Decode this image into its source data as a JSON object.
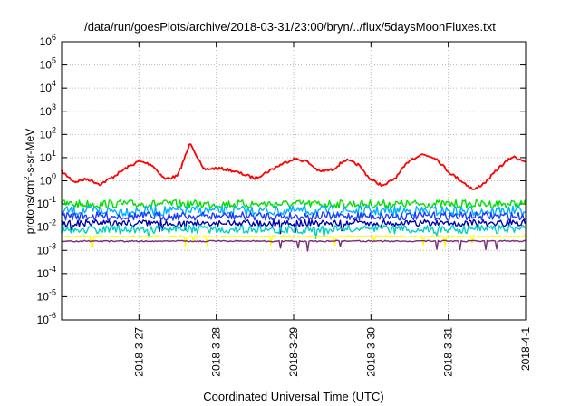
{
  "title": "/data/run/goesPlots/archive/2018-03-31/23:00/bryn/../flux/5daysMoonFluxes.txt",
  "xlabel": "Coordinated Universal Time (UTC)",
  "ylabel": {
    "prefix": "protons/cm",
    "sup": "2",
    "suffix": "-s-sr-MeV"
  },
  "chart_data": {
    "type": "line",
    "title": "/data/run/goesPlots/archive/2018-03-31/23:00/bryn/../flux/5daysMoonFluxes.txt",
    "xlabel": "Coordinated Universal Time (UTC)",
    "ylabel": "protons/cm2-s-sr-MeV",
    "yscale": "log",
    "ylim": [
      1e-06,
      1000000.0
    ],
    "xlim": [
      "2018-03-26T00:00",
      "2018-04-01T00:00"
    ],
    "xticks": [
      "2018-3-27",
      "2018-3-28",
      "2018-3-29",
      "2018-3-30",
      "2018-3-31",
      "2018-4-1"
    ],
    "yticks": [
      "10^-6",
      "10^-5",
      "10^-4",
      "10^-3",
      "10^-2",
      "10^-1",
      "10^0",
      "10^1",
      "10^2",
      "10^3",
      "10^4",
      "10^5",
      "10^6"
    ],
    "grid": true,
    "legend": "none",
    "series": [
      {
        "color": "#ff0000",
        "x": [
          "2018-03-26T00:00",
          "2018-03-26T04:00",
          "2018-03-26T08:00",
          "2018-03-26T12:00",
          "2018-03-26T16:00",
          "2018-03-26T20:00",
          "2018-03-27T00:00",
          "2018-03-27T04:00",
          "2018-03-27T08:00",
          "2018-03-27T12:00",
          "2018-03-27T16:00",
          "2018-03-27T20:00",
          "2018-03-28T00:00",
          "2018-03-28T04:00",
          "2018-03-28T08:00",
          "2018-03-28T12:00",
          "2018-03-28T16:00",
          "2018-03-28T20:00",
          "2018-03-29T00:00",
          "2018-03-29T04:00",
          "2018-03-29T08:00",
          "2018-03-29T12:00",
          "2018-03-29T16:00",
          "2018-03-29T20:00",
          "2018-03-30T00:00",
          "2018-03-30T04:00",
          "2018-03-30T08:00",
          "2018-03-30T12:00",
          "2018-03-30T16:00",
          "2018-03-30T20:00",
          "2018-03-31T00:00",
          "2018-03-31T04:00",
          "2018-03-31T08:00",
          "2018-03-31T12:00",
          "2018-03-31T16:00",
          "2018-03-31T20:00",
          "2018-04-01T00:00"
        ],
        "y": [
          2.5,
          0.9,
          1.2,
          0.7,
          1.5,
          3.5,
          7,
          5,
          1.2,
          1.6,
          45,
          3,
          3.5,
          3,
          2,
          1.3,
          2.5,
          5,
          9,
          7,
          2.5,
          3,
          8,
          5,
          1.1,
          0.6,
          1.5,
          8,
          14,
          10,
          2.5,
          1,
          0.4,
          1,
          4,
          11,
          7
        ]
      },
      {
        "color": "#00e000",
        "x": [
          "2018-03-26T00:00",
          "2018-03-27T00:00",
          "2018-03-28T00:00",
          "2018-03-29T00:00",
          "2018-03-30T00:00",
          "2018-03-31T00:00",
          "2018-04-01T00:00"
        ],
        "y": [
          0.1,
          0.1,
          0.1,
          0.1,
          0.1,
          0.1,
          0.1
        ]
      },
      {
        "color": "#00b0ff",
        "x": [
          "2018-03-26T00:00",
          "2018-03-27T00:00",
          "2018-03-28T00:00",
          "2018-03-29T00:00",
          "2018-03-30T00:00",
          "2018-03-31T00:00",
          "2018-04-01T00:00"
        ],
        "y": [
          0.05,
          0.05,
          0.05,
          0.05,
          0.05,
          0.05,
          0.05
        ]
      },
      {
        "color": "#1a3cff",
        "x": [
          "2018-03-26T00:00",
          "2018-03-27T00:00",
          "2018-03-28T00:00",
          "2018-03-29T00:00",
          "2018-03-30T00:00",
          "2018-03-31T00:00",
          "2018-04-01T00:00"
        ],
        "y": [
          0.03,
          0.03,
          0.03,
          0.03,
          0.03,
          0.03,
          0.03
        ]
      },
      {
        "color": "#0000b0",
        "x": [
          "2018-03-26T00:00",
          "2018-03-27T00:00",
          "2018-03-28T00:00",
          "2018-03-29T00:00",
          "2018-03-30T00:00",
          "2018-03-31T00:00",
          "2018-04-01T00:00"
        ],
        "y": [
          0.015,
          0.015,
          0.015,
          0.015,
          0.015,
          0.015,
          0.015
        ]
      },
      {
        "color": "#00d0c0",
        "x": [
          "2018-03-26T00:00",
          "2018-03-27T00:00",
          "2018-03-28T00:00",
          "2018-03-29T00:00",
          "2018-03-30T00:00",
          "2018-03-31T00:00",
          "2018-04-01T00:00"
        ],
        "y": [
          0.008,
          0.008,
          0.008,
          0.008,
          0.008,
          0.008,
          0.008
        ]
      },
      {
        "color": "#ffff00",
        "x": [
          "2018-03-26T00:00",
          "2018-03-27T00:00",
          "2018-03-28T00:00",
          "2018-03-29T00:00",
          "2018-03-30T00:00",
          "2018-03-31T00:00",
          "2018-04-01T00:00"
        ],
        "y": [
          0.004,
          0.004,
          0.004,
          0.004,
          0.004,
          0.004,
          0.004
        ]
      },
      {
        "color": "#7a2a7a",
        "x": [
          "2018-03-26T00:00",
          "2018-03-27T00:00",
          "2018-03-28T00:00",
          "2018-03-29T00:00",
          "2018-03-30T00:00",
          "2018-03-31T00:00",
          "2018-04-01T00:00"
        ],
        "y": [
          0.0025,
          0.0025,
          0.0025,
          0.0025,
          0.0025,
          0.0025,
          0.0025
        ]
      }
    ]
  }
}
